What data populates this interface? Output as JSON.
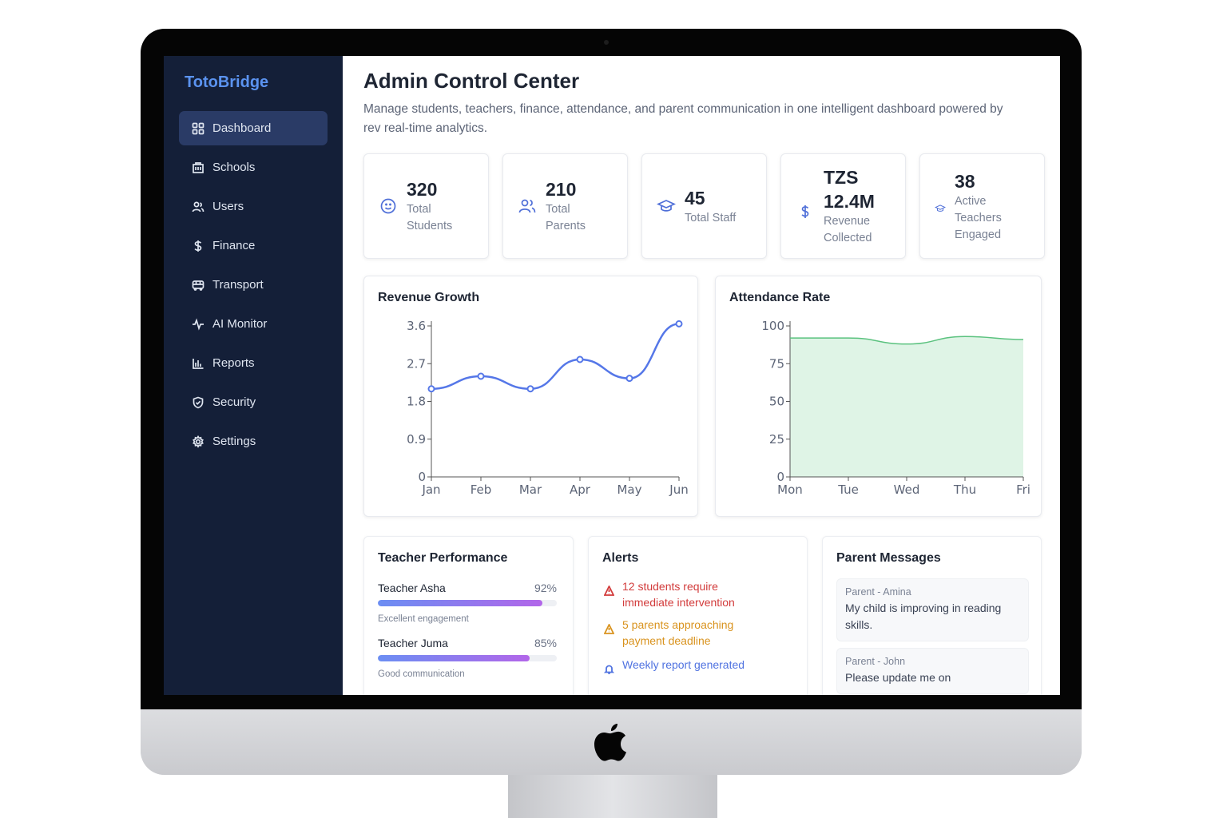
{
  "sidebar": {
    "brand": "TotoBridge",
    "items": [
      {
        "label": "Dashboard",
        "icon": "grid-icon"
      },
      {
        "label": "Schools",
        "icon": "building-icon"
      },
      {
        "label": "Users",
        "icon": "users-icon"
      },
      {
        "label": "Finance",
        "icon": "dollar-icon"
      },
      {
        "label": "Transport",
        "icon": "bus-icon"
      },
      {
        "label": "AI Monitor",
        "icon": "activity-icon"
      },
      {
        "label": "Reports",
        "icon": "bar-chart-icon"
      },
      {
        "label": "Security",
        "icon": "shield-icon"
      },
      {
        "label": "Settings",
        "icon": "gear-icon"
      }
    ]
  },
  "header": {
    "title": "Admin Control Center",
    "subtitle": "Manage students, teachers, finance, attendance, and parent communication in one intelligent dashboard powered by rev real-time analytics."
  },
  "stats": [
    {
      "value": "320",
      "label": "Total Students",
      "icon": "smile-icon"
    },
    {
      "value": "210",
      "label": "Total Parents",
      "icon": "users-icon"
    },
    {
      "value": "45",
      "label": "Total Staff",
      "icon": "graduation-cap-icon"
    },
    {
      "value": "TZS 12.4M",
      "label": "Revenue Collected",
      "icon": "dollar-icon"
    },
    {
      "value": "38",
      "label": "Active Teachers Engaged",
      "icon": "graduation-cap-icon"
    }
  ],
  "chart_data": [
    {
      "type": "line",
      "title": "Revenue Growth",
      "categories": [
        "Jan",
        "Feb",
        "Mar",
        "Apr",
        "May",
        "Jun"
      ],
      "series": [
        {
          "values": [
            2.1,
            2.4,
            2.1,
            2.8,
            2.35,
            3.65
          ]
        }
      ],
      "yticks": [
        "0",
        "0.9",
        "1.8",
        "2.7",
        "3.6"
      ],
      "ylim": [
        0,
        3.6
      ],
      "grid": false,
      "color": "#5577e8"
    },
    {
      "type": "area",
      "title": "Attendance Rate",
      "categories": [
        "Mon",
        "Tue",
        "Wed",
        "Thu",
        "Fri"
      ],
      "series": [
        {
          "values": [
            92,
            92,
            88,
            93,
            91
          ]
        }
      ],
      "yticks": [
        "0",
        "25",
        "50",
        "75",
        "100"
      ],
      "ylim": [
        0,
        100
      ],
      "grid": false,
      "color": "#5bc27f",
      "fill": "#dff4e6"
    }
  ],
  "teacher_performance": {
    "title": "Teacher Performance",
    "teachers": [
      {
        "name": "Teacher Asha",
        "percent": "92%",
        "fraction": 0.92,
        "note": "Excellent engagement"
      },
      {
        "name": "Teacher Juma",
        "percent": "85%",
        "fraction": 0.85,
        "note": "Good communication"
      }
    ]
  },
  "alerts": {
    "title": "Alerts",
    "items": [
      {
        "text": "12 students require immediate intervention",
        "color": "#d23b3b",
        "icon": "warning-icon"
      },
      {
        "text": "5 parents approaching payment deadline",
        "color": "#d9931e",
        "icon": "warning-icon"
      },
      {
        "text": "Weekly report generated",
        "color": "#4f72e0",
        "icon": "bell-icon"
      }
    ]
  },
  "parent_messages": {
    "title": "Parent Messages",
    "items": [
      {
        "from": "Parent - Amina",
        "body": "My child is improving in reading skills."
      },
      {
        "from": "Parent - John",
        "body": "Please update me on"
      }
    ]
  }
}
